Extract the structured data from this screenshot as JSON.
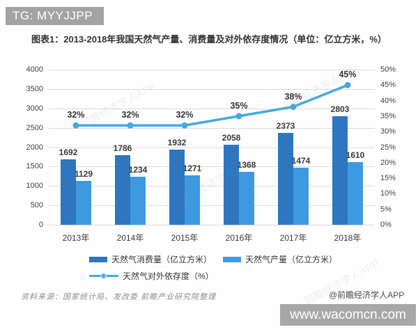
{
  "banners": {
    "tg": "TG: MYYJJPP",
    "url": "www.wacomcn.com"
  },
  "footer": {
    "source_note": "资料来源：国家统计局、发改委 前瞻产业研究院整理",
    "credit": "@前瞻经济学人APP"
  },
  "watermark": {
    "diagonal_text": "前瞻经济学人APP"
  },
  "colors": {
    "consumption_bar": "#2e76c0",
    "production_bar": "#3d9ae1",
    "dependency_line": "#45a9de",
    "gridline": "#dadada",
    "axis_text": "#404040",
    "banner_bg": "#a3a3a3"
  },
  "chart_data": {
    "type": "bar",
    "subtype": "bar-line-combo",
    "title": "图表1：2013-2018年我国天然气产量、消费量及对外依存度情况（单位：亿立方米，%）",
    "categories": [
      "2013年",
      "2014年",
      "2015年",
      "2016年",
      "2017年",
      "2018年"
    ],
    "series": [
      {
        "name": "天然气消费量（亿立方米）",
        "kind": "bar",
        "axis": "left",
        "color": "#2e76c0",
        "values": [
          1692,
          1786,
          1932,
          2058,
          2373,
          2803
        ]
      },
      {
        "name": "天然气产量（亿立方米）",
        "kind": "bar",
        "axis": "left",
        "color": "#3d9ae1",
        "values": [
          1129,
          1234,
          1271,
          1368,
          1474,
          1610
        ]
      },
      {
        "name": "天然气对外依存度（%）",
        "kind": "line",
        "axis": "right",
        "color": "#45a9de",
        "values": [
          32,
          32,
          32,
          35,
          38,
          45
        ],
        "labels": [
          "32%",
          "32%",
          "32%",
          "35%",
          "38%",
          "45%"
        ]
      }
    ],
    "left_axis": {
      "min": 0,
      "max": 4000,
      "step": 500,
      "ticks": [
        "4000",
        "3500",
        "3000",
        "2500",
        "2000",
        "1500",
        "1000",
        "500",
        "0"
      ]
    },
    "right_axis": {
      "min": 0,
      "max": 50,
      "step": 5,
      "ticks": [
        "50%",
        "45%",
        "40%",
        "35%",
        "30%",
        "25%",
        "20%",
        "15%",
        "10%",
        "5%",
        "0%"
      ]
    },
    "grid": true,
    "legend_position": "bottom"
  }
}
